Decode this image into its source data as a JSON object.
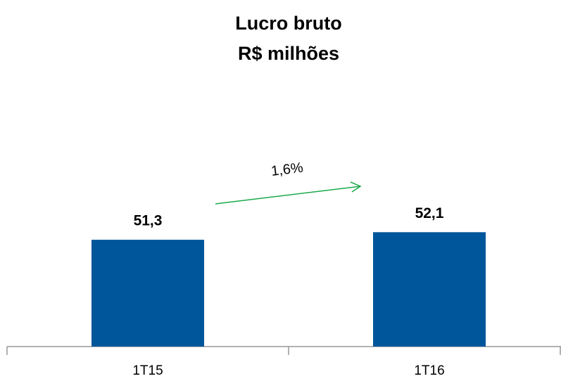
{
  "chart_data": {
    "type": "bar",
    "title": "Lucro bruto",
    "subtitle": "R$ milhões",
    "categories": [
      "1T15",
      "1T16"
    ],
    "values": [
      51.3,
      52.1
    ],
    "value_labels": [
      "51,3",
      "52,1"
    ],
    "color": "#00569a",
    "ylim": [
      40,
      67
    ],
    "annotation": "1,6%"
  }
}
